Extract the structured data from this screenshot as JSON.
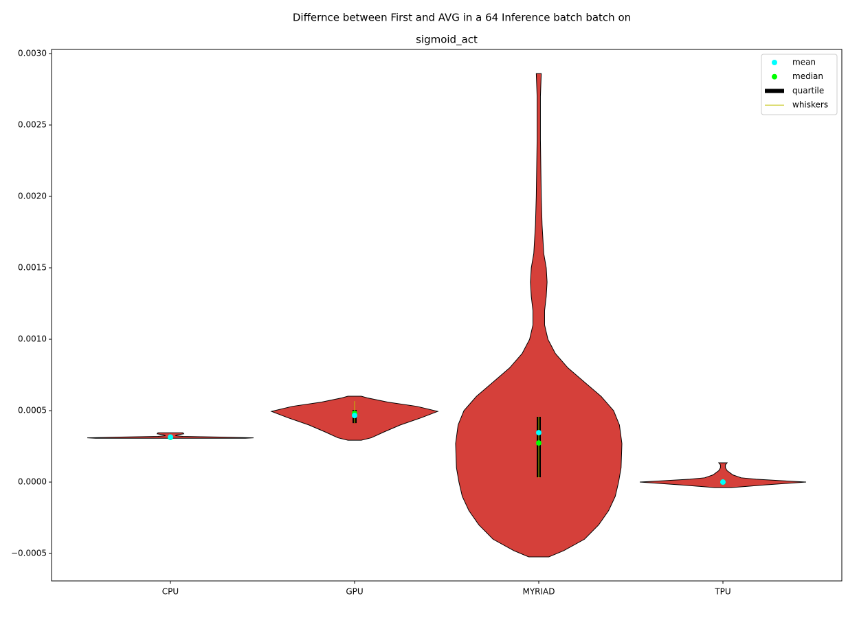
{
  "chart_data": {
    "type": "violin",
    "title": "Differnce between First and AVG in a 64 Inference batch batch on",
    "subtitle": "sigmoid_act",
    "categories": [
      "CPU",
      "GPU",
      "MYRIAD",
      "TPU"
    ],
    "color": "#d5403a",
    "ylim": [
      -0.000692,
      0.003029
    ],
    "yticks": [
      {
        "value": -0.0005,
        "label": "−0.0005"
      },
      {
        "value": 0,
        "label": "0.0000"
      },
      {
        "value": 0.0005,
        "label": "0.0005"
      },
      {
        "value": 0.001,
        "label": "0.0010"
      },
      {
        "value": 0.0015,
        "label": "0.0015"
      },
      {
        "value": 0.002,
        "label": "0.0020"
      },
      {
        "value": 0.0025,
        "label": "0.0025"
      },
      {
        "value": 0.003,
        "label": "0.0030"
      }
    ],
    "legend_position": "upper right",
    "legend": [
      {
        "name": "mean",
        "color": "#00ffff",
        "marker": "dot"
      },
      {
        "name": "median",
        "color": "#00ff00",
        "marker": "dot"
      },
      {
        "name": "quartile",
        "color": "#000000",
        "marker": "thick-line"
      },
      {
        "name": "whiskers",
        "color": "#bfbf00",
        "marker": "line"
      }
    ],
    "violins": [
      {
        "mean": 0.000315,
        "median": 0.000313,
        "q1": 0.000311,
        "q3": 0.000316,
        "whisker_low": 0.00031,
        "whisker_high": 0.000318,
        "profile": {
          "y": [
            0.000307,
            0.00031,
            0.000315,
            0.00032,
            0.000325,
            0.00033,
            0.000338,
            0.000345
          ],
          "density": [
            0.9,
            1.0,
            0.6,
            0.15,
            0.06,
            0.08,
            0.16,
            0.15
          ]
        }
      },
      {
        "mean": 0.000466,
        "median": 0.000481,
        "q1": 0.000413,
        "q3": 0.000505,
        "whisker_low": 0.000413,
        "whisker_high": 0.000567,
        "profile": {
          "y": [
            0.000293,
            0.00031,
            0.00035,
            0.0004,
            0.00045,
            0.000495,
            0.00053,
            0.00056,
            0.00059,
            0.000601
          ],
          "density": [
            0.08,
            0.2,
            0.35,
            0.55,
            0.8,
            1.0,
            0.75,
            0.4,
            0.15,
            0.08
          ]
        }
      },
      {
        "mean": 0.000346,
        "median": 0.000274,
        "q1": 3.37e-05,
        "q3": 0.000457,
        "whisker_low": 3e-05,
        "whisker_high": 0.000457,
        "profile": {
          "y": [
            -0.000524,
            -0.00048,
            -0.0004,
            -0.0003,
            -0.0002,
            -0.0001,
            0,
            0.0001,
            0.00027,
            0.0004,
            0.0005,
            0.0006,
            0.0007,
            0.0008,
            0.0009,
            0.001,
            0.0011,
            0.0012,
            0.0013,
            0.0014,
            0.0015,
            0.0016,
            0.0018,
            0.002,
            0.0024,
            0.0027,
            0.00286
          ],
          "density": [
            0.12,
            0.3,
            0.55,
            0.72,
            0.84,
            0.92,
            0.96,
            0.99,
            1.0,
            0.97,
            0.9,
            0.75,
            0.55,
            0.35,
            0.2,
            0.11,
            0.07,
            0.07,
            0.09,
            0.1,
            0.09,
            0.06,
            0.04,
            0.03,
            0.02,
            0.02,
            0.03
          ]
        }
      },
      {
        "mean": 0.0,
        "median": 0.0,
        "q1": -3e-06,
        "q3": 4e-06,
        "whisker_low": -5e-06,
        "whisker_high": 6e-06,
        "profile": {
          "y": [
            -3.85e-05,
            -2e-05,
            0,
            1e-05,
            2e-05,
            3e-05,
            5e-05,
            8e-05,
            0.0001,
            0.00012,
            0.000135
          ],
          "density": [
            0.1,
            0.5,
            1.0,
            0.7,
            0.4,
            0.22,
            0.12,
            0.05,
            0.03,
            0.03,
            0.05
          ]
        }
      }
    ]
  }
}
